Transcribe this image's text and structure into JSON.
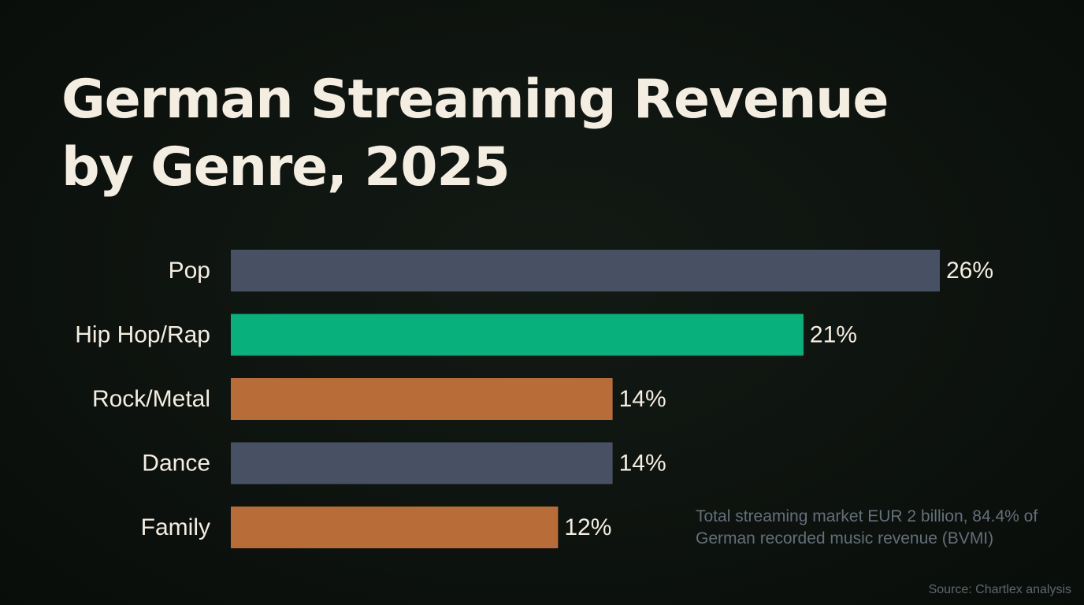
{
  "chart_data": {
    "type": "bar",
    "orientation": "horizontal",
    "title": "German Streaming Revenue by Genre, 2025",
    "categories": [
      "Pop",
      "Hip Hop/Rap",
      "Rock/Metal",
      "Dance",
      "Family"
    ],
    "values": [
      26,
      21,
      14,
      14,
      12
    ],
    "value_labels": [
      "26%",
      "21%",
      "14%",
      "14%",
      "12%"
    ],
    "unit": "%",
    "bar_colors": [
      "#475163",
      "#08b07b",
      "#b86d38",
      "#475163",
      "#b86d38"
    ],
    "xlim": [
      0,
      26
    ],
    "grid": false,
    "legend": "none",
    "annotation": "Total streaming market EUR 2 billion, 84.4% of German recorded music revenue (BVMI)",
    "source": "Source: Chartlex analysis"
  },
  "colors": {
    "background": "#0c110d",
    "title": "#f4ede1",
    "label": "#f4ede1",
    "note": "#646f7a"
  }
}
